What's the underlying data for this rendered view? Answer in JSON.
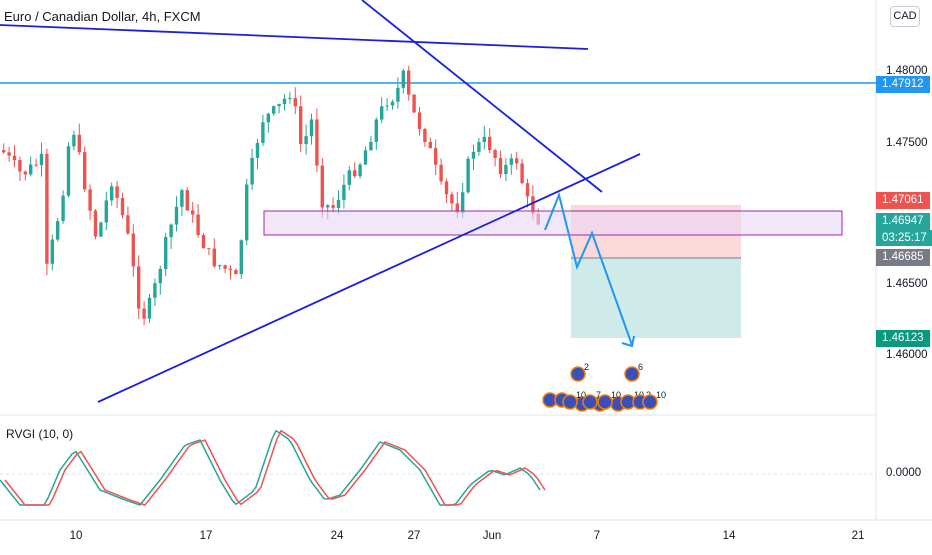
{
  "header": {
    "symbol_title": "Euro / Canadian Dollar, 4h, FXCM",
    "currency": "CAD"
  },
  "indicator": {
    "label": "RVGI (10, 0)",
    "zero_label": "0.0000"
  },
  "price_axis": {
    "ticks": [
      "1.48000",
      "1.47500",
      "1.46500",
      "1.46000"
    ]
  },
  "price_labels": {
    "resistance": {
      "value": "1.47912",
      "color": "#2196f3"
    },
    "stop": {
      "value": "1.47061",
      "color": "#ef5350"
    },
    "current": {
      "value": "1.46947",
      "color": "#26a69a"
    },
    "countdown": "03:25:17",
    "entry": {
      "value": "1.46685",
      "color": "#787b86"
    },
    "target": {
      "value": "1.46123",
      "color": "#089981"
    }
  },
  "date_axis": {
    "ticks": [
      "10",
      "17",
      "24",
      "27",
      "Jun",
      "7",
      "14",
      "21"
    ]
  },
  "events": {
    "labels": [
      "2",
      "6",
      "10",
      "7",
      "10",
      "10",
      "2",
      "10"
    ]
  },
  "colors": {
    "up_candle": "#26a69a",
    "down_candle": "#ef5350",
    "trendline": "#1a1ee0",
    "horizontal_line": "#2196f3",
    "zone_fill": "#e9d6f5",
    "zone_border": "#9c27b0",
    "rvgi_line": "#ef5350",
    "rvgi_signal": "#26a69a",
    "projection": "#2196f3"
  }
}
